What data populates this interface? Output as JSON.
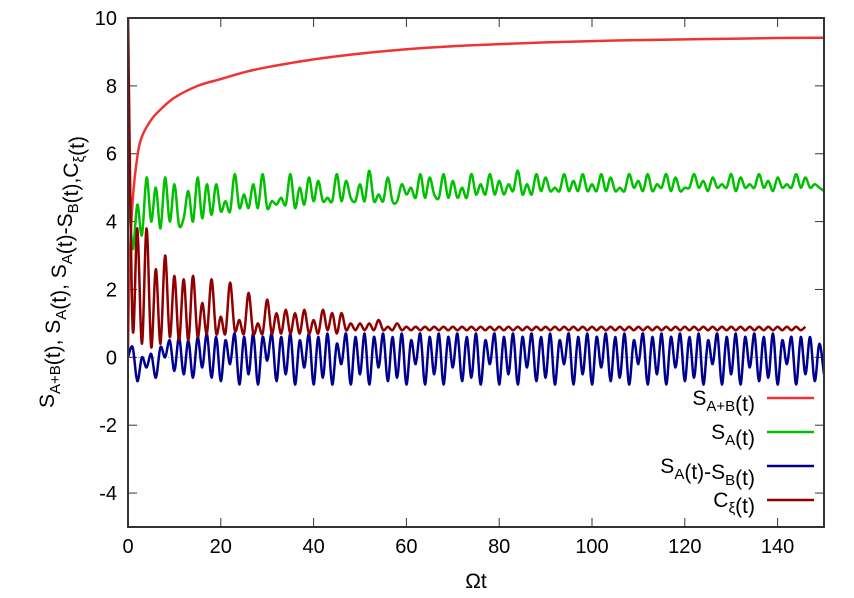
{
  "chart_data": {
    "type": "line",
    "title": "",
    "xlabel": "Ωt",
    "ylabel": [
      {
        "t": "S"
      },
      {
        "t": "A+B",
        "sub": true
      },
      {
        "t": "(t), S"
      },
      {
        "t": "A",
        "sub": true
      },
      {
        "t": "(t), S"
      },
      {
        "t": "A",
        "sub": true
      },
      {
        "t": "(t)-S"
      },
      {
        "t": "B",
        "sub": true
      },
      {
        "t": "(t),C"
      },
      {
        "t": "ξ",
        "sub": true
      },
      {
        "t": "(t)"
      }
    ],
    "xlim": [
      0,
      150
    ],
    "ylim": [
      -5,
      10
    ],
    "xticks": [
      0,
      20,
      40,
      60,
      80,
      100,
      120,
      140
    ],
    "yticks": [
      -4,
      -2,
      0,
      2,
      4,
      6,
      8,
      10
    ],
    "grid": false,
    "zero_line": true,
    "legend_position": "bottom-right",
    "sample_step": 1,
    "series": [
      {
        "name": [
          {
            "t": "S"
          },
          {
            "t": "A+B",
            "sub": true
          },
          {
            "t": "(t)"
          }
        ],
        "color": "#f03232",
        "points": [
          [
            0,
            0
          ],
          [
            0.3,
            2.5
          ],
          [
            1,
            4.6
          ],
          [
            2,
            5.9
          ],
          [
            3,
            6.5
          ],
          [
            5,
            7.0
          ],
          [
            7,
            7.3
          ],
          [
            10,
            7.65
          ],
          [
            15,
            8.0
          ],
          [
            20,
            8.2
          ],
          [
            25,
            8.4
          ],
          [
            30,
            8.55
          ],
          [
            40,
            8.78
          ],
          [
            50,
            8.95
          ],
          [
            60,
            9.08
          ],
          [
            70,
            9.17
          ],
          [
            80,
            9.23
          ],
          [
            90,
            9.28
          ],
          [
            100,
            9.32
          ],
          [
            110,
            9.35
          ],
          [
            120,
            9.37
          ],
          [
            130,
            9.39
          ],
          [
            140,
            9.41
          ],
          [
            150,
            9.42
          ]
        ]
      },
      {
        "name": [
          {
            "t": "S"
          },
          {
            "t": "A",
            "sub": true
          },
          {
            "t": "(t)"
          }
        ],
        "color": "#00c000",
        "values": [
          5.4,
          3.2,
          4.5,
          3.6,
          5.3,
          4.0,
          5.0,
          3.8,
          5.3,
          4.0,
          5.1,
          3.9,
          4.1,
          4.9,
          4.0,
          5.3,
          4.1,
          5.1,
          4.2,
          5.1,
          4.3,
          4.6,
          4.3,
          5.4,
          4.4,
          4.8,
          4.4,
          5.1,
          4.4,
          5.4,
          4.4,
          4.6,
          4.5,
          4.7,
          4.5,
          5.4,
          4.4,
          5.0,
          4.5,
          5.3,
          4.6,
          5.2,
          4.6,
          4.7,
          4.6,
          5.4,
          4.6,
          5.2,
          4.7,
          4.6,
          5.1,
          4.6,
          5.5,
          4.6,
          4.8,
          4.6,
          5.3,
          4.6,
          4.6,
          5.1,
          4.8,
          5.0,
          4.7,
          5.4,
          4.7,
          5.3,
          4.8,
          4.7,
          5.4,
          4.7,
          5.2,
          4.7,
          5.0,
          4.7,
          5.4,
          4.8,
          5.1,
          4.8,
          5.4,
          4.8,
          5.2,
          4.8,
          5.1,
          4.9,
          5.5,
          4.8,
          5.1,
          4.8,
          5.4,
          4.9,
          5.3,
          4.9,
          5.0,
          4.9,
          5.4,
          4.9,
          5.2,
          4.9,
          5.4,
          4.9,
          5.1,
          4.9,
          5.4,
          4.9,
          5.3,
          4.9,
          5.0,
          4.9,
          5.4,
          5.0,
          5.2,
          4.9,
          5.4,
          4.9,
          5.1,
          5.0,
          5.4,
          4.9,
          5.3,
          4.9,
          5.0,
          5.0,
          5.4,
          5.0,
          5.2,
          4.9,
          5.3,
          5.0,
          5.1,
          5.0,
          5.4,
          4.9,
          5.3,
          5.0,
          5.1,
          5.0,
          5.4,
          5.0,
          5.2,
          4.9,
          5.3,
          5.0,
          5.1,
          5.0,
          5.4,
          5.0,
          5.3,
          5.0,
          5.1,
          5.0,
          4.9
        ]
      },
      {
        "name": [
          {
            "t": "S"
          },
          {
            "t": "A",
            "sub": true
          },
          {
            "t": "(t)-S"
          },
          {
            "t": "B",
            "sub": true
          },
          {
            "t": "(t)"
          }
        ],
        "color": "#000090",
        "values": [
          0.0,
          0.3,
          -0.7,
          0.0,
          -0.3,
          0.1,
          -0.6,
          0.3,
          0.0,
          0.5,
          -0.4,
          0.6,
          -0.5,
          0.5,
          -0.6,
          0.6,
          -0.3,
          0.7,
          -0.6,
          0.6,
          -0.7,
          0.5,
          -0.2,
          0.7,
          -0.8,
          0.6,
          -0.5,
          0.7,
          -0.8,
          0.6,
          -0.1,
          0.7,
          -0.7,
          0.6,
          -0.5,
          0.7,
          -0.8,
          0.5,
          -0.3,
          0.7,
          -0.8,
          0.6,
          -0.6,
          0.7,
          -0.8,
          0.4,
          -0.2,
          0.7,
          -0.8,
          0.6,
          -0.5,
          0.7,
          -0.8,
          0.6,
          -0.3,
          0.7,
          -0.7,
          0.6,
          -0.6,
          0.7,
          -0.8,
          0.5,
          -0.2,
          0.7,
          -0.8,
          0.6,
          -0.5,
          0.7,
          -0.8,
          0.6,
          -0.3,
          0.7,
          -0.7,
          0.6,
          -0.6,
          0.7,
          -0.8,
          0.5,
          -0.2,
          0.7,
          -0.8,
          0.6,
          -0.5,
          0.7,
          -0.8,
          0.6,
          -0.3,
          0.7,
          -0.7,
          0.6,
          -0.6,
          0.7,
          -0.8,
          0.5,
          -0.2,
          0.7,
          -0.8,
          0.6,
          -0.5,
          0.7,
          -0.8,
          0.6,
          -0.3,
          0.7,
          -0.7,
          0.6,
          -0.6,
          0.7,
          -0.8,
          0.5,
          -0.2,
          0.7,
          -0.8,
          0.6,
          -0.5,
          0.7,
          -0.8,
          0.6,
          -0.3,
          0.7,
          -0.7,
          0.6,
          -0.6,
          0.7,
          -0.8,
          0.5,
          -0.2,
          0.7,
          -0.8,
          0.6,
          -0.5,
          0.7,
          -0.8,
          0.6,
          -0.3,
          0.7,
          -0.7,
          0.6,
          -0.6,
          0.7,
          -0.8,
          0.5,
          -0.2,
          0.6,
          -0.8,
          0.6,
          -0.5,
          0.6,
          -0.7,
          0.4,
          -0.5
        ]
      },
      {
        "name": [
          {
            "t": "C"
          },
          {
            "t": "ξ",
            "sub": true
          },
          {
            "t": "(t)"
          }
        ],
        "color": "#900000",
        "values": [
          10,
          0.9,
          3.8,
          0.4,
          3.8,
          0.3,
          2.6,
          0.4,
          3.0,
          0.6,
          2.4,
          0.5,
          2.3,
          0.5,
          2.4,
          0.6,
          1.6,
          0.7,
          2.3,
          0.7,
          1.2,
          0.7,
          2.2,
          0.8,
          1.1,
          0.7,
          1.9,
          0.7,
          1.0,
          0.7,
          1.7,
          0.7,
          1.3,
          0.7,
          1.4,
          0.7,
          1.3,
          0.7,
          1.4,
          0.7,
          1.1,
          0.7,
          1.4,
          0.8,
          1.3,
          0.7,
          1.3,
          0.8,
          1.0,
          0.8,
          1.0,
          0.8,
          1.0,
          0.8,
          1.1,
          0.8,
          0.9,
          0.8,
          1.0,
          0.8,
          0.9,
          0.8,
          0.9,
          0.8,
          0.9,
          0.8,
          0.9,
          0.8,
          0.9,
          0.8,
          0.9,
          0.8,
          0.9,
          0.8,
          0.9,
          0.8,
          0.9,
          0.8,
          0.9,
          0.8,
          0.9,
          0.8,
          0.9,
          0.8,
          0.9,
          0.8,
          0.9,
          0.8,
          0.9,
          0.8,
          0.9,
          0.8,
          0.9,
          0.8,
          0.9,
          0.8,
          0.9,
          0.8,
          0.9,
          0.8,
          0.9,
          0.8,
          0.9,
          0.8,
          0.9,
          0.8,
          0.9,
          0.8,
          0.9,
          0.8,
          0.9,
          0.8,
          0.9,
          0.8,
          0.9,
          0.8,
          0.9,
          0.8,
          0.9,
          0.8,
          0.9,
          0.8,
          0.9,
          0.8,
          0.9,
          0.8,
          0.9,
          0.8,
          0.9,
          0.8,
          0.9,
          0.8,
          0.9,
          0.8,
          0.9,
          0.8,
          0.9,
          0.8,
          0.9,
          0.8,
          0.9,
          0.8,
          0.9,
          0.8,
          0.9,
          0.8,
          0.9
        ]
      }
    ]
  }
}
